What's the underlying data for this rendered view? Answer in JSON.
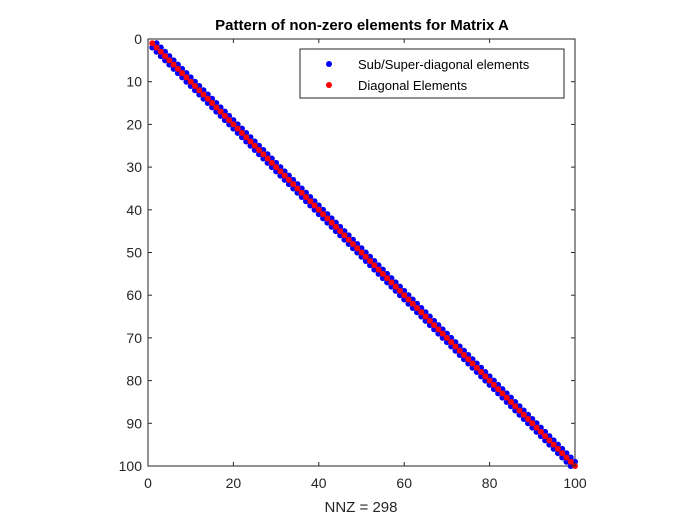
{
  "chart_data": {
    "type": "scatter",
    "title": "Pattern of non-zero elements for Matrix A",
    "xlabel": "NNZ = 298",
    "ylabel": "",
    "xlim": [
      0,
      100
    ],
    "ylim": [
      0,
      100
    ],
    "y_reversed": true,
    "grid": false,
    "legend_position": "top-right",
    "xticks": [
      "0",
      "20",
      "40",
      "60",
      "80",
      "100"
    ],
    "yticks": [
      "0",
      "10",
      "20",
      "30",
      "40",
      "50",
      "60",
      "70",
      "80",
      "90",
      "100"
    ],
    "matrix_size": 100,
    "nnz": 298,
    "series": [
      {
        "name": "Sub/Super-diagonal elements",
        "color": "#0000ff",
        "pattern": "tridiagonal off-diagonals (|i - j| = 1)",
        "count": 198
      },
      {
        "name": "Diagonal Elements",
        "color": "#ff0000",
        "pattern": "main diagonal (i = j)",
        "count": 100
      }
    ]
  }
}
